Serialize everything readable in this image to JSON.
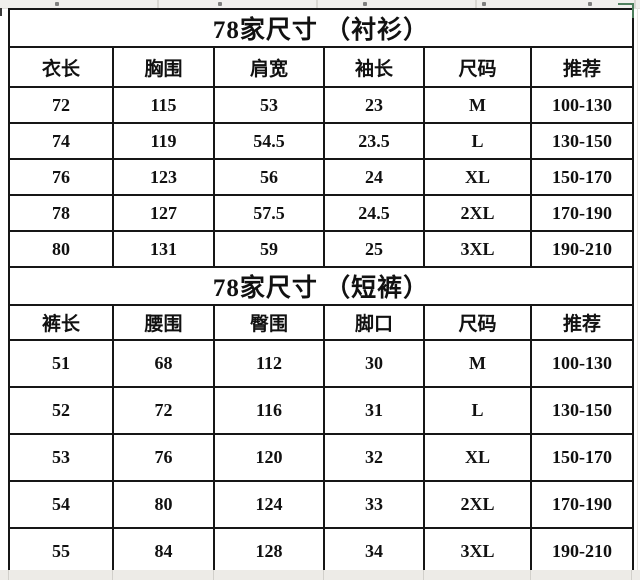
{
  "colors": {
    "selection_green": "#4e7f5d",
    "table_border": "#161616",
    "strip_gray": "#f0efec",
    "text": "#111111",
    "background": "#ffffff"
  },
  "tables": [
    {
      "title": "78家尺寸 （衬衫）",
      "headers": [
        "衣长",
        "胸围",
        "肩宽",
        "袖长",
        "尺码",
        "推荐"
      ],
      "rows": [
        [
          "72",
          "115",
          "53",
          "23",
          "M",
          "100-130"
        ],
        [
          "74",
          "119",
          "54.5",
          "23.5",
          "L",
          "130-150"
        ],
        [
          "76",
          "123",
          "56",
          "24",
          "XL",
          "150-170"
        ],
        [
          "78",
          "127",
          "57.5",
          "24.5",
          "2XL",
          "170-190"
        ],
        [
          "80",
          "131",
          "59",
          "25",
          "3XL",
          "190-210"
        ]
      ]
    },
    {
      "title": "78家尺寸 （短裤）",
      "headers": [
        "裤长",
        "腰围",
        "臀围",
        "脚口",
        "尺码",
        "推荐"
      ],
      "rows": [
        [
          "51",
          "68",
          "112",
          "30",
          "M",
          "100-130"
        ],
        [
          "52",
          "72",
          "116",
          "31",
          "L",
          "130-150"
        ],
        [
          "53",
          "76",
          "120",
          "32",
          "XL",
          "150-170"
        ],
        [
          "54",
          "80",
          "124",
          "33",
          "2XL",
          "170-190"
        ],
        [
          "55",
          "84",
          "128",
          "34",
          "3XL",
          "190-210"
        ]
      ]
    }
  ]
}
